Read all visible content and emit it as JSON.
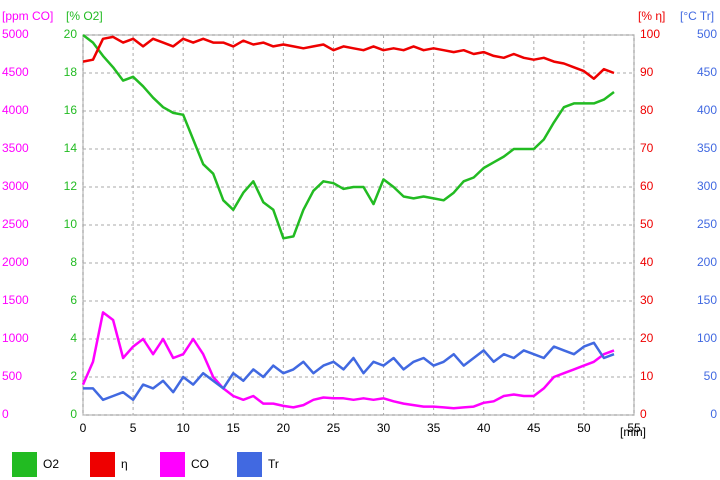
{
  "chart_data": {
    "type": "line",
    "x_label": "[min]",
    "xlim": [
      0,
      55
    ],
    "xticks": [
      0,
      5,
      10,
      15,
      20,
      25,
      30,
      35,
      40,
      45,
      50,
      55
    ],
    "grid": true,
    "y_axes": [
      {
        "label": "[ppm CO]",
        "color": "#ff00ff",
        "lim": [
          0,
          5000
        ],
        "ticks": [
          0,
          500,
          1000,
          1500,
          2000,
          2500,
          3000,
          3500,
          4000,
          4500,
          5000
        ]
      },
      {
        "label": "[% O2]",
        "color": "#22bb22",
        "lim": [
          0,
          20
        ],
        "ticks": [
          0,
          2,
          4,
          6,
          8,
          10,
          12,
          14,
          16,
          18,
          20
        ]
      },
      {
        "label": "[% η]",
        "color": "#ee0000",
        "lim": [
          0,
          100
        ],
        "ticks": [
          0,
          10,
          20,
          30,
          40,
          50,
          60,
          70,
          80,
          90,
          100
        ]
      },
      {
        "label": "[°C Tr]",
        "color": "#4169e1",
        "lim": [
          0,
          500
        ],
        "ticks": [
          0,
          50,
          100,
          150,
          200,
          250,
          300,
          350,
          400,
          450,
          500
        ]
      }
    ],
    "x": [
      0,
      1,
      2,
      3,
      4,
      5,
      6,
      7,
      8,
      9,
      10,
      11,
      12,
      13,
      14,
      15,
      16,
      17,
      18,
      19,
      20,
      21,
      22,
      23,
      24,
      25,
      26,
      27,
      28,
      29,
      30,
      31,
      32,
      33,
      34,
      35,
      36,
      37,
      38,
      39,
      40,
      41,
      42,
      43,
      44,
      45,
      46,
      47,
      48,
      49,
      50,
      51,
      52,
      53
    ],
    "series": [
      {
        "name": "O2",
        "color": "#22bb22",
        "axis": 1,
        "values": [
          20,
          19.6,
          18.9,
          18.3,
          17.6,
          17.8,
          17.3,
          16.7,
          16.2,
          15.9,
          15.8,
          14.5,
          13.2,
          12.7,
          11.3,
          10.8,
          11.7,
          12.3,
          11.2,
          10.8,
          9.3,
          9.4,
          10.8,
          11.8,
          12.3,
          12.2,
          11.9,
          12,
          12,
          11.1,
          12.4,
          12,
          11.5,
          11.4,
          11.5,
          11.4,
          11.3,
          11.7,
          12.3,
          12.5,
          13,
          13.3,
          13.6,
          14,
          14,
          14,
          14.5,
          15.4,
          16.2,
          16.4,
          16.4,
          16.4,
          16.6,
          17
        ]
      },
      {
        "name": "η",
        "color": "#ee0000",
        "axis": 2,
        "values": [
          93,
          93.5,
          99,
          99.5,
          98,
          99,
          97,
          99,
          98,
          97,
          99,
          98,
          99,
          98,
          98,
          97,
          98.5,
          97.5,
          98,
          97,
          97.5,
          97,
          96.5,
          97,
          97.5,
          96,
          97,
          96.5,
          96,
          97,
          96,
          96.5,
          96,
          97,
          96,
          96.5,
          96,
          95.5,
          96,
          95,
          95.5,
          94.5,
          94,
          95,
          94,
          93.5,
          94,
          93,
          92.5,
          91.5,
          90.5,
          88.5,
          91,
          90
        ]
      },
      {
        "name": "CO",
        "color": "#ff00ff",
        "axis": 0,
        "values": [
          400,
          700,
          1350,
          1250,
          750,
          900,
          1000,
          800,
          1000,
          750,
          800,
          1000,
          800,
          500,
          350,
          250,
          200,
          250,
          150,
          150,
          120,
          100,
          130,
          200,
          230,
          220,
          220,
          200,
          220,
          200,
          220,
          180,
          150,
          130,
          110,
          110,
          100,
          90,
          100,
          110,
          160,
          180,
          250,
          270,
          250,
          250,
          350,
          500,
          550,
          600,
          650,
          700,
          800,
          850
        ]
      },
      {
        "name": "Tr",
        "color": "#4169e1",
        "axis": 3,
        "values": [
          35,
          35,
          20,
          25,
          30,
          20,
          40,
          35,
          45,
          30,
          50,
          40,
          55,
          45,
          35,
          55,
          45,
          60,
          50,
          65,
          55,
          60,
          70,
          55,
          65,
          70,
          60,
          75,
          55,
          70,
          65,
          75,
          60,
          70,
          75,
          65,
          70,
          80,
          65,
          75,
          85,
          70,
          80,
          75,
          85,
          80,
          75,
          90,
          85,
          80,
          90,
          95,
          75,
          80
        ]
      }
    ]
  }
}
